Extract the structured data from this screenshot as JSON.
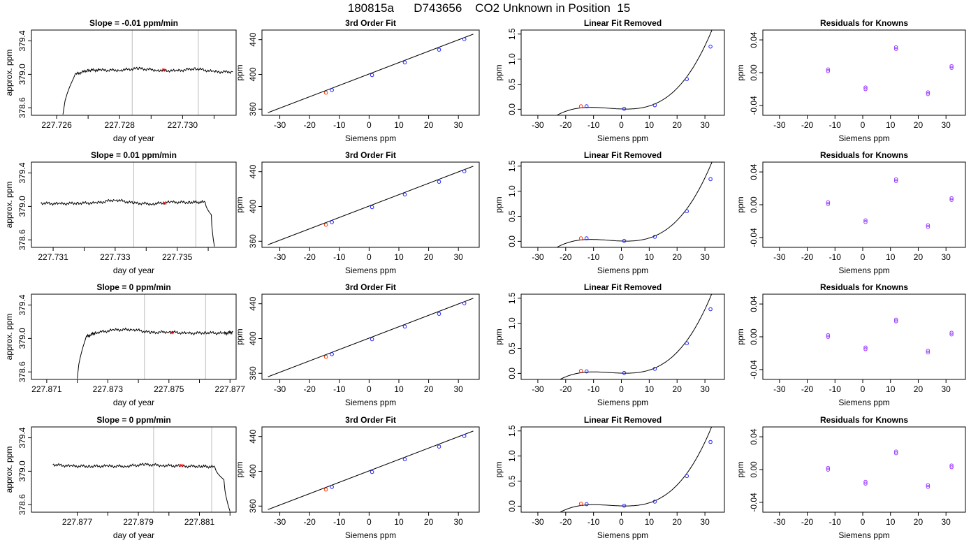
{
  "page_title": "180815a      D743656    CO2 Unknown in Position  15",
  "chart_data": [
    {
      "id": "r1c1",
      "type": "line",
      "title": "Slope =  -0.01  ppm/min",
      "xlabel": "day of year",
      "ylabel": "approx. ppm",
      "xlim": [
        227.7252,
        227.7317
      ],
      "ylim": [
        378.51,
        379.53
      ],
      "xticks": [
        227.726,
        227.727,
        227.728,
        227.729,
        227.73,
        227.731
      ],
      "xticklabels": [
        "227.726",
        "",
        "227.728",
        "",
        "227.730",
        ""
      ],
      "yticks": [
        378.6,
        379.0,
        379.4
      ],
      "yticklabels": [
        "378.6",
        "379.0",
        "379.4"
      ],
      "vlines": [
        227.7284,
        227.7305
      ],
      "series": [
        {
          "x": [
            227.7262,
            227.7266,
            227.727,
            227.7274,
            227.728,
            227.7286,
            227.7292,
            227.7298,
            227.7304,
            227.731,
            227.7316
          ],
          "y": [
            378.52,
            379.0,
            379.05,
            379.05,
            379.05,
            379.07,
            379.05,
            379.04,
            379.07,
            379.03,
            379.03
          ]
        }
      ],
      "marker": {
        "x": 227.7294,
        "y": 379.05
      }
    },
    {
      "id": "r1c2",
      "type": "scatter",
      "title": "3rd Order Fit",
      "xlabel": "Siemens ppm",
      "ylabel": "ppm",
      "xlim": [
        -36,
        37
      ],
      "ylim": [
        353,
        451
      ],
      "xticks": [
        -30,
        -20,
        -10,
        0,
        10,
        20,
        30
      ],
      "xticklabels": [
        "-30",
        "-20",
        "-10",
        "0",
        "10",
        "20",
        "30"
      ],
      "yticks": [
        360,
        400,
        440
      ],
      "yticklabels": [
        "360",
        "400",
        "440"
      ],
      "fit_line": [
        [
          -34,
          356.0
        ],
        [
          35,
          446.3
        ]
      ],
      "points": [
        [
          -12.5,
          382.0
        ],
        [
          1,
          399.2
        ],
        [
          12,
          413.8
        ],
        [
          23.5,
          428.4
        ],
        [
          32,
          440.5
        ]
      ],
      "unknown_point": [
        -14.5,
        379.0
      ]
    },
    {
      "id": "r1c3",
      "type": "scatter",
      "title": "Linear Fit Removed",
      "xlabel": "Siemens ppm",
      "ylabel": "ppm",
      "xlim": [
        -36,
        37
      ],
      "ylim": [
        -0.12,
        1.58
      ],
      "xticks": [
        -30,
        -20,
        -10,
        0,
        10,
        20,
        30
      ],
      "xticklabels": [
        "-30",
        "-20",
        "-10",
        "0",
        "10",
        "20",
        "30"
      ],
      "yticks": [
        0,
        0.5,
        1.0,
        1.5
      ],
      "yticklabels": [
        "0.0",
        "0.5",
        "1.0",
        "1.5"
      ],
      "curve_poly": [
        0.00617,
        -0.00195,
        0.000458,
        3.36e-05
      ],
      "curve_range": [
        -34,
        35
      ],
      "points": [
        [
          -12.5,
          0.06
        ],
        [
          1,
          0.01
        ],
        [
          12,
          0.08
        ],
        [
          23.5,
          0.6
        ],
        [
          32,
          1.25
        ]
      ],
      "unknown_point": [
        -14.5,
        0.06
      ]
    },
    {
      "id": "r1c4",
      "type": "scatter",
      "title": "Residuals for Knowns",
      "xlabel": "Siemens ppm",
      "ylabel": "ppm",
      "xlim": [
        -36,
        37
      ],
      "ylim": [
        -0.052,
        0.052
      ],
      "xticks": [
        -30,
        -20,
        -10,
        0,
        10,
        20,
        30
      ],
      "xticklabels": [
        "-30",
        "-20",
        "-10",
        "0",
        "10",
        "20",
        "30"
      ],
      "yticks": [
        -0.04,
        0,
        0.04
      ],
      "yticklabels": [
        "-0.04",
        "0.00",
        "0.04"
      ],
      "points": [
        [
          -12.5,
          0.004
        ],
        [
          1,
          -0.018
        ],
        [
          12,
          0.031
        ],
        [
          23.5,
          -0.024
        ],
        [
          32,
          0.008
        ]
      ]
    },
    {
      "id": "r2c1",
      "type": "line",
      "title": "Slope =  0.01  ppm/min",
      "xlabel": "day of year",
      "ylabel": "approx. ppm",
      "xlim": [
        227.7303,
        227.7369
      ],
      "ylim": [
        378.51,
        379.53
      ],
      "xticks": [
        227.731,
        227.732,
        227.733,
        227.734,
        227.735,
        227.736
      ],
      "xticklabels": [
        "227.731",
        "",
        "227.733",
        "",
        "227.735",
        ""
      ],
      "yticks": [
        378.6,
        379.0,
        379.4
      ],
      "yticklabels": [
        "378.6",
        "379.0",
        "379.4"
      ],
      "vlines": [
        227.7336,
        227.7356
      ],
      "series": [
        {
          "x": [
            227.7306,
            227.7312,
            227.7318,
            227.7324,
            227.733,
            227.7336,
            227.7342,
            227.7348,
            227.7354,
            227.7359,
            227.7361,
            227.7362
          ],
          "y": [
            379.04,
            379.03,
            379.04,
            379.04,
            379.08,
            379.04,
            379.03,
            379.05,
            379.05,
            379.05,
            378.9,
            378.52
          ]
        }
      ],
      "marker": {
        "x": 227.7346,
        "y": 379.04
      }
    },
    {
      "id": "r2c2",
      "type": "scatter",
      "title": "3rd Order Fit",
      "xlabel": "Siemens ppm",
      "ylabel": "ppm",
      "xlim": [
        -36,
        37
      ],
      "ylim": [
        353,
        451
      ],
      "xticks": [
        -30,
        -20,
        -10,
        0,
        10,
        20,
        30
      ],
      "xticklabels": [
        "-30",
        "-20",
        "-10",
        "0",
        "10",
        "20",
        "30"
      ],
      "yticks": [
        360,
        400,
        440
      ],
      "yticklabels": [
        "360",
        "400",
        "440"
      ],
      "fit_line": [
        [
          -34,
          356.0
        ],
        [
          35,
          446.3
        ]
      ],
      "points": [
        [
          -12.5,
          382.0
        ],
        [
          1,
          399.2
        ],
        [
          12,
          413.8
        ],
        [
          23.5,
          428.4
        ],
        [
          32,
          440.5
        ]
      ],
      "unknown_point": [
        -14.5,
        379.0
      ]
    },
    {
      "id": "r2c3",
      "type": "scatter",
      "title": "Linear Fit Removed",
      "xlabel": "Siemens ppm",
      "ylabel": "ppm",
      "xlim": [
        -36,
        37
      ],
      "ylim": [
        -0.12,
        1.58
      ],
      "xticks": [
        -30,
        -20,
        -10,
        0,
        10,
        20,
        30
      ],
      "xticklabels": [
        "-30",
        "-20",
        "-10",
        "0",
        "10",
        "20",
        "30"
      ],
      "yticks": [
        0,
        0.5,
        1.0,
        1.5
      ],
      "yticklabels": [
        "0.0",
        "0.5",
        "1.0",
        "1.5"
      ],
      "curve_poly": [
        0.00617,
        -0.00195,
        0.000458,
        3.36e-05
      ],
      "curve_range": [
        -34,
        35
      ],
      "points": [
        [
          -12.5,
          0.06
        ],
        [
          1,
          0.01
        ],
        [
          12,
          0.09
        ],
        [
          23.5,
          0.6
        ],
        [
          32,
          1.24
        ]
      ],
      "unknown_point": [
        -14.5,
        0.06
      ]
    },
    {
      "id": "r2c4",
      "type": "scatter",
      "title": "Residuals for Knowns",
      "xlabel": "Siemens ppm",
      "ylabel": "ppm",
      "xlim": [
        -36,
        37
      ],
      "ylim": [
        -0.052,
        0.052
      ],
      "xticks": [
        -30,
        -20,
        -10,
        0,
        10,
        20,
        30
      ],
      "xticklabels": [
        "-30",
        "-20",
        "-10",
        "0",
        "10",
        "20",
        "30"
      ],
      "yticks": [
        -0.04,
        0,
        0.04
      ],
      "yticklabels": [
        "-0.04",
        "0.00",
        "0.04"
      ],
      "points": [
        [
          -12.5,
          0.003
        ],
        [
          1,
          -0.019
        ],
        [
          12,
          0.031
        ],
        [
          23.5,
          -0.025
        ],
        [
          32,
          0.008
        ]
      ]
    },
    {
      "id": "r3c1",
      "type": "line",
      "title": "Slope =  0  ppm/min",
      "xlabel": "day of year",
      "ylabel": "approx. ppm",
      "xlim": [
        227.8705,
        227.8772
      ],
      "ylim": [
        378.51,
        379.53
      ],
      "xticks": [
        227.871,
        227.872,
        227.873,
        227.874,
        227.875,
        227.876,
        227.877
      ],
      "xticklabels": [
        "227.871",
        "",
        "227.873",
        "",
        "227.875",
        "",
        "227.877"
      ],
      "yticks": [
        378.6,
        379.0,
        379.4
      ],
      "yticklabels": [
        "378.6",
        "379.0",
        "379.4"
      ],
      "vlines": [
        227.8742,
        227.8762
      ],
      "series": [
        {
          "x": [
            227.872,
            227.8723,
            227.8726,
            227.8732,
            227.8738,
            227.8744,
            227.875,
            227.8756,
            227.8762,
            227.8768,
            227.8771
          ],
          "y": [
            378.52,
            379.02,
            379.07,
            379.1,
            379.11,
            379.07,
            379.08,
            379.06,
            379.07,
            379.06,
            379.08
          ]
        }
      ],
      "marker": {
        "x": 227.8751,
        "y": 379.07
      }
    },
    {
      "id": "r3c2",
      "type": "scatter",
      "title": "3rd Order Fit",
      "xlabel": "Siemens ppm",
      "ylabel": "ppm",
      "xlim": [
        -36,
        37
      ],
      "ylim": [
        353,
        451
      ],
      "xticks": [
        -30,
        -20,
        -10,
        0,
        10,
        20,
        30
      ],
      "xticklabels": [
        "-30",
        "-20",
        "-10",
        "0",
        "10",
        "20",
        "30"
      ],
      "yticks": [
        360,
        400,
        440
      ],
      "yticklabels": [
        "360",
        "400",
        "440"
      ],
      "fit_line": [
        [
          -34,
          356.0
        ],
        [
          35,
          446.3
        ]
      ],
      "points": [
        [
          -12.5,
          382.0
        ],
        [
          1,
          399.2
        ],
        [
          12,
          413.8
        ],
        [
          23.5,
          428.4
        ],
        [
          32,
          440.5
        ]
      ],
      "unknown_point": [
        -14.5,
        379.0
      ]
    },
    {
      "id": "r3c3",
      "type": "scatter",
      "title": "Linear Fit Removed",
      "xlabel": "Siemens ppm",
      "ylabel": "ppm",
      "xlim": [
        -36,
        37
      ],
      "ylim": [
        -0.12,
        1.58
      ],
      "xticks": [
        -30,
        -20,
        -10,
        0,
        10,
        20,
        30
      ],
      "xticklabels": [
        "-30",
        "-20",
        "-10",
        "0",
        "10",
        "20",
        "30"
      ],
      "yticks": [
        0,
        0.5,
        1.0,
        1.5
      ],
      "yticklabels": [
        "0.0",
        "0.5",
        "1.0",
        "1.5"
      ],
      "curve_poly": [
        0.005,
        -0.0016,
        0.00043,
        3.46e-05
      ],
      "curve_range": [
        -34,
        35
      ],
      "points": [
        [
          -12.5,
          0.04
        ],
        [
          1,
          0.01
        ],
        [
          12,
          0.09
        ],
        [
          23.5,
          0.6
        ],
        [
          32,
          1.28
        ]
      ],
      "unknown_point": [
        -14.5,
        0.05
      ]
    },
    {
      "id": "r3c4",
      "type": "scatter",
      "title": "Residuals for Knowns",
      "xlabel": "Siemens ppm",
      "ylabel": "ppm",
      "xlim": [
        -36,
        37
      ],
      "ylim": [
        -0.052,
        0.052
      ],
      "xticks": [
        -30,
        -20,
        -10,
        0,
        10,
        20,
        30
      ],
      "xticklabels": [
        "-30",
        "-20",
        "-10",
        "0",
        "10",
        "20",
        "30"
      ],
      "yticks": [
        -0.04,
        0,
        0.04
      ],
      "yticklabels": [
        "-0.04",
        "0.00",
        "0.04"
      ],
      "points": [
        [
          -12.5,
          0.002
        ],
        [
          1,
          -0.013
        ],
        [
          12,
          0.021
        ],
        [
          23.5,
          -0.017
        ],
        [
          32,
          0.005
        ]
      ]
    },
    {
      "id": "r4c1",
      "type": "line",
      "title": "Slope =  0  ppm/min",
      "xlabel": "day of year",
      "ylabel": "approx. ppm",
      "xlim": [
        227.8755,
        227.8822
      ],
      "ylim": [
        378.51,
        379.53
      ],
      "xticks": [
        227.877,
        227.878,
        227.879,
        227.88,
        227.881,
        227.882
      ],
      "xticklabels": [
        "227.877",
        "",
        "227.879",
        "",
        "227.881",
        ""
      ],
      "yticks": [
        378.6,
        379.0,
        379.4
      ],
      "yticklabels": [
        "378.6",
        "379.0",
        "379.4"
      ],
      "vlines": [
        227.8795,
        227.8814
      ],
      "series": [
        {
          "x": [
            227.8762,
            227.8768,
            227.8774,
            227.878,
            227.8786,
            227.8792,
            227.8798,
            227.8804,
            227.881,
            227.8815,
            227.8818,
            227.882
          ],
          "y": [
            379.08,
            379.06,
            379.06,
            379.06,
            379.06,
            379.08,
            379.07,
            379.06,
            379.06,
            379.05,
            378.9,
            378.52
          ]
        }
      ],
      "marker": {
        "x": 227.8804,
        "y": 379.07
      }
    },
    {
      "id": "r4c2",
      "type": "scatter",
      "title": "3rd Order Fit",
      "xlabel": "Siemens ppm",
      "ylabel": "ppm",
      "xlim": [
        -36,
        37
      ],
      "ylim": [
        353,
        451
      ],
      "xticks": [
        -30,
        -20,
        -10,
        0,
        10,
        20,
        30
      ],
      "xticklabels": [
        "-30",
        "-20",
        "-10",
        "0",
        "10",
        "20",
        "30"
      ],
      "yticks": [
        360,
        400,
        440
      ],
      "yticklabels": [
        "360",
        "400",
        "440"
      ],
      "fit_line": [
        [
          -34,
          356.0
        ],
        [
          35,
          446.3
        ]
      ],
      "points": [
        [
          -12.5,
          382.0
        ],
        [
          1,
          399.2
        ],
        [
          12,
          413.8
        ],
        [
          23.5,
          428.4
        ],
        [
          32,
          440.5
        ]
      ],
      "unknown_point": [
        -14.5,
        379.0
      ]
    },
    {
      "id": "r4c3",
      "type": "scatter",
      "title": "Linear Fit Removed",
      "xlabel": "Siemens ppm",
      "ylabel": "ppm",
      "xlim": [
        -36,
        37
      ],
      "ylim": [
        -0.12,
        1.58
      ],
      "xticks": [
        -30,
        -20,
        -10,
        0,
        10,
        20,
        30
      ],
      "xticklabels": [
        "-30",
        "-20",
        "-10",
        "0",
        "10",
        "20",
        "30"
      ],
      "yticks": [
        0,
        0.5,
        1.0,
        1.5
      ],
      "yticklabels": [
        "0.0",
        "0.5",
        "1.0",
        "1.5"
      ],
      "curve_poly": [
        0.005,
        -0.0016,
        0.00043,
        3.46e-05
      ],
      "curve_range": [
        -34,
        35
      ],
      "points": [
        [
          -12.5,
          0.04
        ],
        [
          1,
          0.01
        ],
        [
          12,
          0.09
        ],
        [
          23.5,
          0.6
        ],
        [
          32,
          1.28
        ]
      ],
      "unknown_point": [
        -14.5,
        0.05
      ]
    },
    {
      "id": "r4c4",
      "type": "scatter",
      "title": "Residuals for Knowns",
      "xlabel": "Siemens ppm",
      "ylabel": "ppm",
      "xlim": [
        -36,
        37
      ],
      "ylim": [
        -0.052,
        0.052
      ],
      "xticks": [
        -30,
        -20,
        -10,
        0,
        10,
        20,
        30
      ],
      "xticklabels": [
        "-30",
        "-20",
        "-10",
        "0",
        "10",
        "20",
        "30"
      ],
      "yticks": [
        -0.04,
        0,
        0.04
      ],
      "yticklabels": [
        "-0.04",
        "0.00",
        "0.04"
      ],
      "points": [
        [
          -12.5,
          0.002
        ],
        [
          1,
          -0.015
        ],
        [
          12,
          0.022
        ],
        [
          23.5,
          -0.019
        ],
        [
          32,
          0.005
        ]
      ]
    }
  ],
  "colors": {
    "known_points": "#2222ff",
    "unknown_point": "#ff3300",
    "marker": "#ff0000",
    "vline": "#bdbdbd",
    "line": "#000000",
    "residual_points": "#9a3cff"
  }
}
